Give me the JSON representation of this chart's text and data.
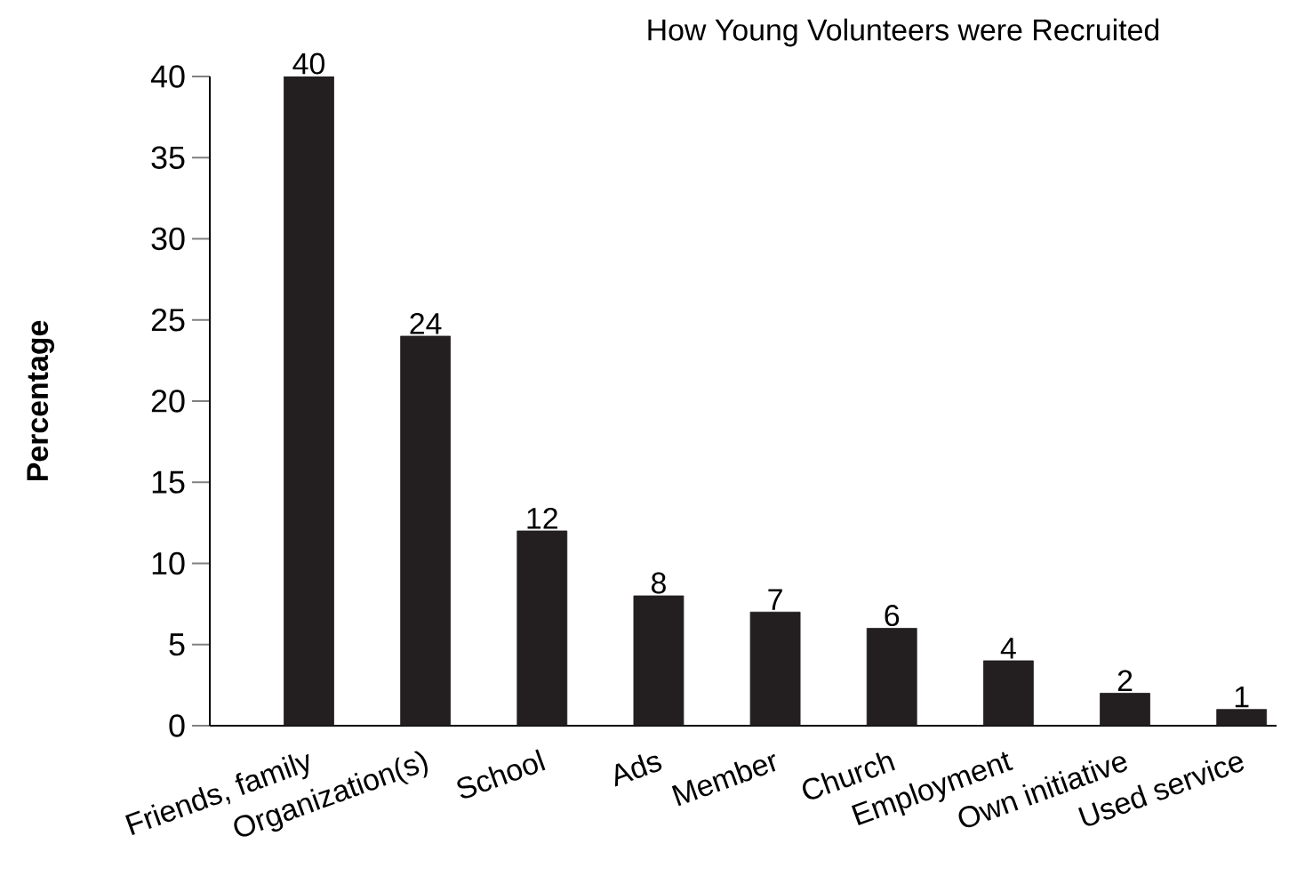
{
  "chart_data": {
    "type": "bar",
    "title": "How Young Volunteers were Recruited",
    "ylabel": "Percentage",
    "categories": [
      "Friends, family",
      "Organization(s)",
      "School",
      "Ads",
      "Member",
      "Church",
      "Employment",
      "Own initiative",
      "Used service"
    ],
    "values": [
      40,
      24,
      12,
      8,
      7,
      6,
      4,
      2,
      1
    ],
    "color": "#231f20",
    "ylim": [
      0,
      40
    ],
    "yticks": [
      0,
      5,
      10,
      15,
      20,
      25,
      30,
      35,
      40
    ],
    "data_labels": true,
    "grid": false
  }
}
